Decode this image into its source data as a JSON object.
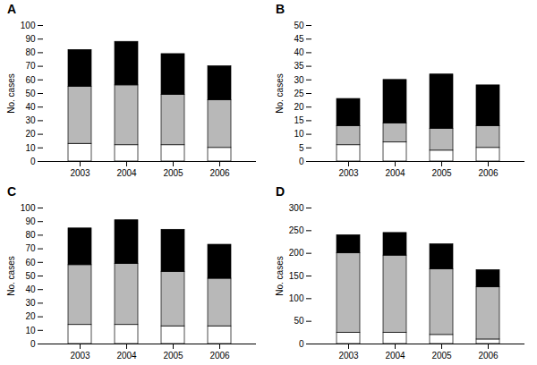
{
  "chart_data": [
    {
      "type": "bar",
      "title": "A",
      "stacked": true,
      "categories": [
        "2003",
        "2004",
        "2005",
        "2006"
      ],
      "series": [
        {
          "color": "#ffffff",
          "values": [
            13,
            12,
            12,
            10
          ]
        },
        {
          "color": "#b8b8b8",
          "values": [
            42,
            44,
            37,
            35
          ]
        },
        {
          "color": "#000000",
          "values": [
            27,
            32,
            30,
            25
          ]
        }
      ],
      "ylabel": "No. cases",
      "ylim": [
        0,
        100
      ],
      "yticks": [
        0,
        10,
        20,
        30,
        40,
        50,
        60,
        70,
        80,
        90,
        100
      ]
    },
    {
      "type": "bar",
      "title": "B",
      "stacked": true,
      "categories": [
        "2003",
        "2004",
        "2005",
        "2006"
      ],
      "series": [
        {
          "color": "#ffffff",
          "values": [
            6,
            7,
            4,
            5
          ]
        },
        {
          "color": "#b8b8b8",
          "values": [
            7,
            7,
            8,
            8
          ]
        },
        {
          "color": "#000000",
          "values": [
            10,
            16,
            20,
            15
          ]
        }
      ],
      "ylabel": "No. cases",
      "ylim": [
        0,
        50
      ],
      "yticks": [
        0,
        5,
        10,
        15,
        20,
        25,
        30,
        35,
        40,
        45,
        50
      ]
    },
    {
      "type": "bar",
      "title": "C",
      "stacked": true,
      "categories": [
        "2003",
        "2004",
        "2005",
        "2006"
      ],
      "series": [
        {
          "color": "#ffffff",
          "values": [
            14,
            14,
            13,
            13
          ]
        },
        {
          "color": "#b8b8b8",
          "values": [
            44,
            45,
            40,
            35
          ]
        },
        {
          "color": "#000000",
          "values": [
            27,
            32,
            31,
            25
          ]
        }
      ],
      "ylabel": "No. cases",
      "ylim": [
        0,
        100
      ],
      "yticks": [
        0,
        10,
        20,
        30,
        40,
        50,
        60,
        70,
        80,
        90,
        100
      ]
    },
    {
      "type": "bar",
      "title": "D",
      "stacked": true,
      "categories": [
        "2003",
        "2004",
        "2005",
        "2006"
      ],
      "series": [
        {
          "color": "#ffffff",
          "values": [
            25,
            25,
            20,
            10
          ]
        },
        {
          "color": "#b8b8b8",
          "values": [
            175,
            170,
            145,
            115
          ]
        },
        {
          "color": "#000000",
          "values": [
            40,
            50,
            55,
            38
          ]
        }
      ],
      "ylabel": "No. cases",
      "ylim": [
        0,
        300
      ],
      "yticks": [
        0,
        50,
        100,
        150,
        200,
        250,
        300
      ]
    }
  ]
}
